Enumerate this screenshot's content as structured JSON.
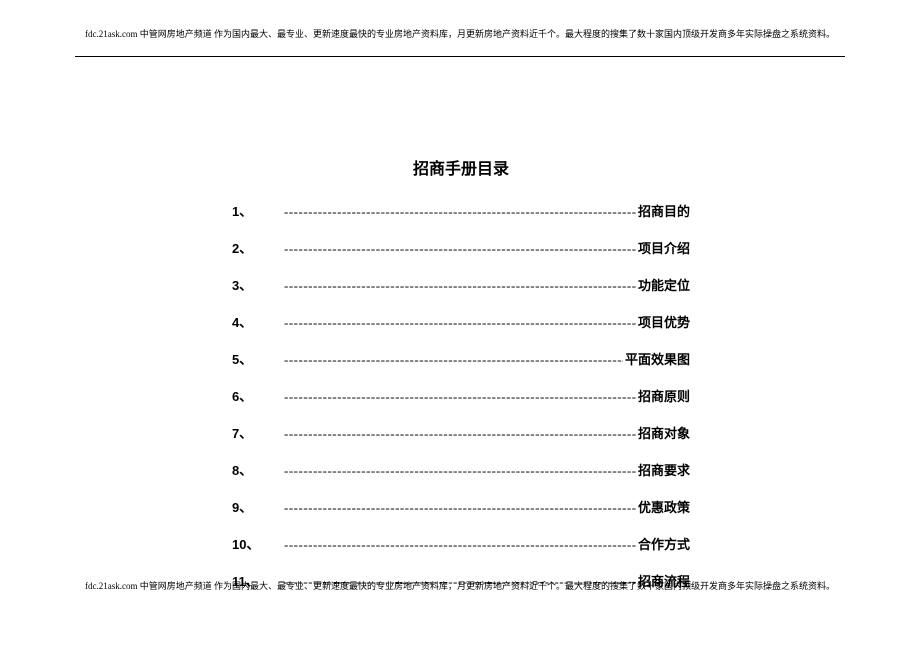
{
  "header": {
    "text": "fdc.21ask.com 中管网房地产频道 作为国内最大、最专业、更新速度最快的专业房地产资料库，月更新房地产资料近千个。最大程度的搜集了数十家国内顶级开发商多年实际操盘之系统资料。"
  },
  "footer": {
    "text": "fdc.21ask.com 中管网房地产频道 作为国内最大、最专业、更新速度最快的专业房地产资料库，月更新房地产资料近千个。最大程度的搜集了数十家国内顶级开发商多年实际操盘之系统资料。"
  },
  "doc": {
    "title": "招商手册目录"
  },
  "toc": {
    "dashes": "---------------------------------------------------------------------------------------------------",
    "items": [
      {
        "num": "1、",
        "label": "招商目的"
      },
      {
        "num": "2、",
        "label": "项目介绍"
      },
      {
        "num": "3、",
        "label": "功能定位"
      },
      {
        "num": "4、",
        "label": "项目优势"
      },
      {
        "num": "5、",
        "label": "平面效果图"
      },
      {
        "num": "6、",
        "label": "招商原则"
      },
      {
        "num": "7、",
        "label": "招商对象"
      },
      {
        "num": "8、",
        "label": "招商要求"
      },
      {
        "num": "9、",
        "label": "优惠政策"
      },
      {
        "num": "10、",
        "label": "合作方式"
      },
      {
        "num": "11、",
        "label": "招商流程"
      }
    ]
  },
  "style": {
    "page_bg": "#ffffff",
    "text_color": "#000000",
    "header_fontsize": 9,
    "title_fontsize": 16,
    "row_fontsize": 13,
    "row_gap": 18
  }
}
